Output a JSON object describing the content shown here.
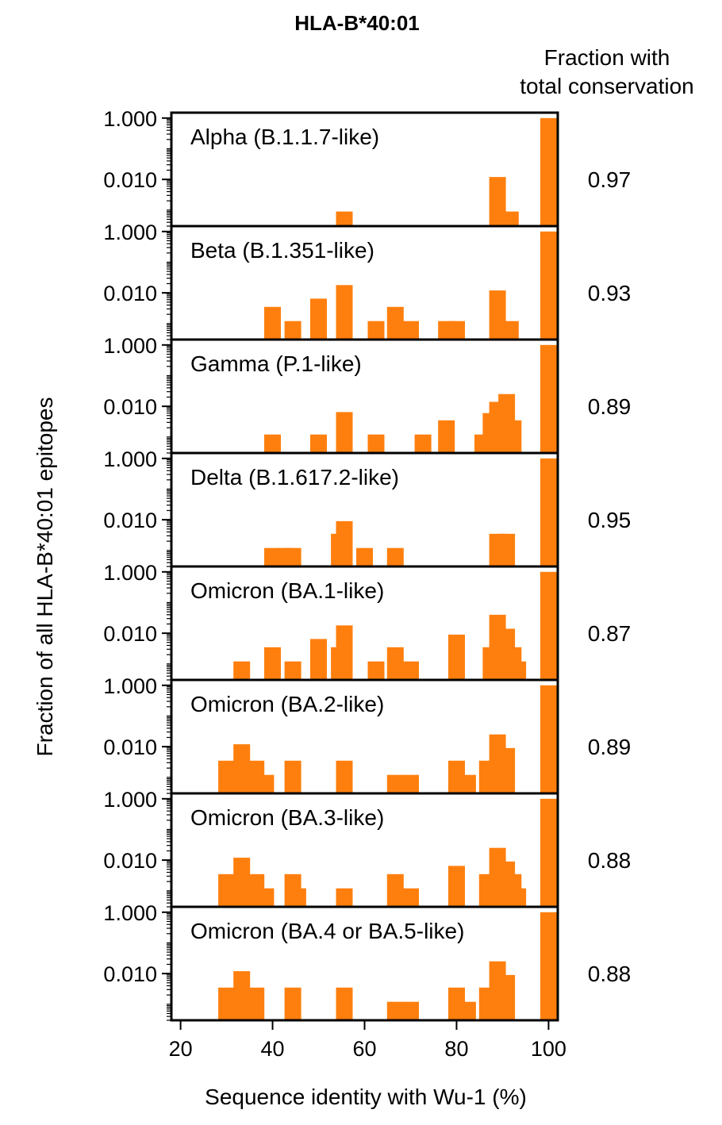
{
  "chart_data": {
    "type": "bar",
    "title": "HLA-B*40:01",
    "ylabel": "Fraction of all HLA-B*40:01 epitopes",
    "xlabel": "Sequence identity with Wu-1 (%)",
    "right_header": [
      "Fraction with",
      "total conservation"
    ],
    "y_scale": "log",
    "ylim": [
      0.0003,
      1.5
    ],
    "y_ticks": [
      1.0,
      0.01
    ],
    "y_tick_labels": [
      "1.000",
      "0.010"
    ],
    "xlim": [
      18,
      102
    ],
    "x_ticks": [
      20,
      40,
      60,
      80,
      100
    ],
    "x_tick_labels": [
      "20",
      "40",
      "60",
      "80",
      "100"
    ],
    "panels": [
      {
        "name": "Alpha (B.1.1.7-like)",
        "conservation": "0.97",
        "bars": [
          {
            "x": 55.6,
            "y": 0.0009
          },
          {
            "x": 88.9,
            "y": 0.012
          },
          {
            "x": 91.7,
            "y": 0.0009
          },
          {
            "x": 100,
            "y": 1.0
          }
        ]
      },
      {
        "name": "Beta (B.1.351-like)",
        "conservation": "0.93",
        "bars": [
          {
            "x": 40,
            "y": 0.0035
          },
          {
            "x": 44.4,
            "y": 0.0012
          },
          {
            "x": 50,
            "y": 0.0065
          },
          {
            "x": 55.6,
            "y": 0.018
          },
          {
            "x": 62.5,
            "y": 0.0012
          },
          {
            "x": 66.7,
            "y": 0.0035
          },
          {
            "x": 70,
            "y": 0.0012
          },
          {
            "x": 77.8,
            "y": 0.0012
          },
          {
            "x": 80,
            "y": 0.0012
          },
          {
            "x": 88.9,
            "y": 0.012
          },
          {
            "x": 91.7,
            "y": 0.0012
          },
          {
            "x": 100,
            "y": 1.0
          }
        ]
      },
      {
        "name": "Gamma (P.1-like)",
        "conservation": "0.89",
        "bars": [
          {
            "x": 40,
            "y": 0.0012
          },
          {
            "x": 50,
            "y": 0.0012
          },
          {
            "x": 55.6,
            "y": 0.0065
          },
          {
            "x": 62.5,
            "y": 0.0012
          },
          {
            "x": 72.7,
            "y": 0.0012
          },
          {
            "x": 77.8,
            "y": 0.0035
          },
          {
            "x": 85.7,
            "y": 0.0012
          },
          {
            "x": 87.5,
            "y": 0.006
          },
          {
            "x": 88.9,
            "y": 0.014
          },
          {
            "x": 90.9,
            "y": 0.025
          },
          {
            "x": 92.3,
            "y": 0.0035
          },
          {
            "x": 100,
            "y": 1.0
          }
        ]
      },
      {
        "name": "Delta (B.1.617.2-like)",
        "conservation": "0.95",
        "bars": [
          {
            "x": 40,
            "y": 0.0012
          },
          {
            "x": 42.9,
            "y": 0.0012
          },
          {
            "x": 44.4,
            "y": 0.0012
          },
          {
            "x": 54.5,
            "y": 0.0035
          },
          {
            "x": 55.6,
            "y": 0.009
          },
          {
            "x": 60,
            "y": 0.0012
          },
          {
            "x": 66.7,
            "y": 0.0012
          },
          {
            "x": 88.9,
            "y": 0.0035
          },
          {
            "x": 90.9,
            "y": 0.0035
          },
          {
            "x": 100,
            "y": 1.0
          }
        ]
      },
      {
        "name": "Omicron (BA.1-like)",
        "conservation": "0.87",
        "bars": [
          {
            "x": 33.3,
            "y": 0.0012
          },
          {
            "x": 40,
            "y": 0.0035
          },
          {
            "x": 44.4,
            "y": 0.0012
          },
          {
            "x": 50,
            "y": 0.0065
          },
          {
            "x": 54.5,
            "y": 0.0035
          },
          {
            "x": 55.6,
            "y": 0.018
          },
          {
            "x": 62.5,
            "y": 0.0012
          },
          {
            "x": 66.7,
            "y": 0.0035
          },
          {
            "x": 70,
            "y": 0.0012
          },
          {
            "x": 80,
            "y": 0.009
          },
          {
            "x": 87.5,
            "y": 0.0035
          },
          {
            "x": 88.9,
            "y": 0.04
          },
          {
            "x": 90.9,
            "y": 0.014
          },
          {
            "x": 92.3,
            "y": 0.0035
          },
          {
            "x": 93.3,
            "y": 0.0012
          },
          {
            "x": 100,
            "y": 1.0
          }
        ]
      },
      {
        "name": "Omicron (BA.2-like)",
        "conservation": "0.89",
        "bars": [
          {
            "x": 30,
            "y": 0.0035
          },
          {
            "x": 33.3,
            "y": 0.012
          },
          {
            "x": 36.4,
            "y": 0.0035
          },
          {
            "x": 38.5,
            "y": 0.0012
          },
          {
            "x": 44.4,
            "y": 0.0035
          },
          {
            "x": 55.6,
            "y": 0.0035
          },
          {
            "x": 66.7,
            "y": 0.0012
          },
          {
            "x": 70,
            "y": 0.0012
          },
          {
            "x": 80,
            "y": 0.0035
          },
          {
            "x": 82.4,
            "y": 0.0012
          },
          {
            "x": 86.7,
            "y": 0.0035
          },
          {
            "x": 88.9,
            "y": 0.025
          },
          {
            "x": 90.9,
            "y": 0.009
          },
          {
            "x": 100,
            "y": 1.0
          }
        ]
      },
      {
        "name": "Omicron (BA.3-like)",
        "conservation": "0.88",
        "bars": [
          {
            "x": 30,
            "y": 0.0035
          },
          {
            "x": 33.3,
            "y": 0.012
          },
          {
            "x": 36.4,
            "y": 0.0035
          },
          {
            "x": 38.5,
            "y": 0.0012
          },
          {
            "x": 44.4,
            "y": 0.0035
          },
          {
            "x": 45.5,
            "y": 0.0012
          },
          {
            "x": 55.6,
            "y": 0.0012
          },
          {
            "x": 66.7,
            "y": 0.0035
          },
          {
            "x": 70,
            "y": 0.0012
          },
          {
            "x": 80,
            "y": 0.0065
          },
          {
            "x": 86.7,
            "y": 0.0035
          },
          {
            "x": 88.9,
            "y": 0.025
          },
          {
            "x": 90.9,
            "y": 0.009
          },
          {
            "x": 92.3,
            "y": 0.0035
          },
          {
            "x": 93.3,
            "y": 0.0012
          },
          {
            "x": 100,
            "y": 1.0
          }
        ]
      },
      {
        "name": "Omicron (BA.4 or BA.5-like)",
        "conservation": "0.88",
        "bars": [
          {
            "x": 30,
            "y": 0.0035
          },
          {
            "x": 33.3,
            "y": 0.012
          },
          {
            "x": 36.4,
            "y": 0.0035
          },
          {
            "x": 44.4,
            "y": 0.0035
          },
          {
            "x": 55.6,
            "y": 0.0035
          },
          {
            "x": 66.7,
            "y": 0.0012
          },
          {
            "x": 70,
            "y": 0.0012
          },
          {
            "x": 80,
            "y": 0.0035
          },
          {
            "x": 82.4,
            "y": 0.0012
          },
          {
            "x": 86.7,
            "y": 0.0035
          },
          {
            "x": 88.9,
            "y": 0.025
          },
          {
            "x": 90.9,
            "y": 0.009
          },
          {
            "x": 100,
            "y": 1.0
          }
        ]
      }
    ]
  }
}
